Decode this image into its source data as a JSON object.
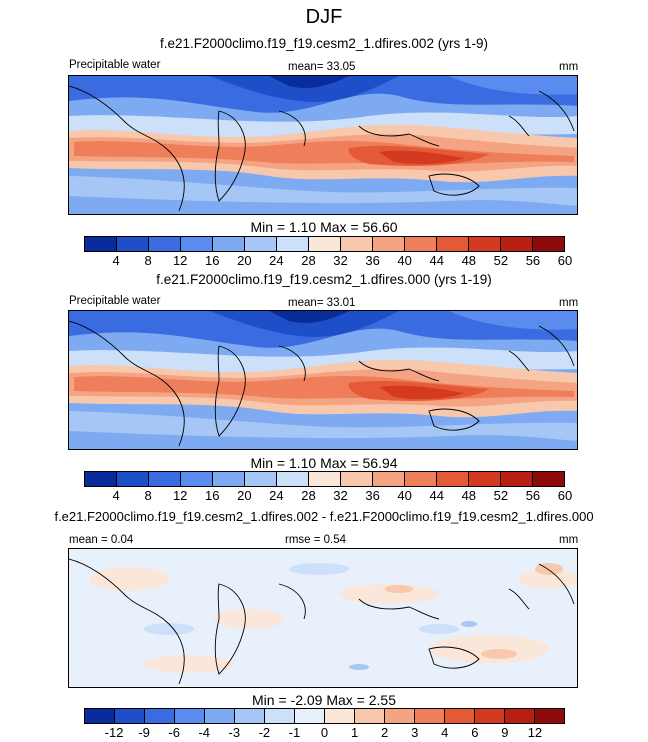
{
  "title": "DJF",
  "panels": [
    {
      "case_title": "f.e21.F2000climo.f19_f19.cesm2_1.dfires.002 (yrs 1-9)",
      "variable": "Precipitable water",
      "stat_text": "mean=  33.05",
      "units": "mm",
      "minmax": "Min =   1.10 Max =   56.60"
    },
    {
      "case_title": "f.e21.F2000climo.f19_f19.cesm2_1.dfires.000 (yrs 1-19)",
      "variable": "Precipitable water",
      "stat_text": "mean=  33.01",
      "units": "mm",
      "minmax": "Min =   1.10 Max =   56.94"
    },
    {
      "case_title": "f.e21.F2000climo.f19_f19.cesm2_1.dfires.002 - f.e21.F2000climo.f19_f19.cesm2_1.dfires.000",
      "mean_text": "mean =   0.04",
      "rmse_text": "rmse =   0.54",
      "units": "mm",
      "minmax": "Min =  -2.09 Max =   2.55"
    }
  ],
  "colorbar_abs": {
    "colors": [
      "#0a2c9a",
      "#1f4fc8",
      "#3a6be0",
      "#5a8cf0",
      "#7eaaf2",
      "#a6c6f5",
      "#cde0fa",
      "#fbe6da",
      "#f8c8ad",
      "#f5a483",
      "#ef7e5a",
      "#e55a36",
      "#d33a1f",
      "#b81f13",
      "#8f0a0a"
    ],
    "labels": [
      "4",
      "8",
      "12",
      "16",
      "20",
      "24",
      "28",
      "32",
      "36",
      "40",
      "44",
      "48",
      "52",
      "56",
      "60"
    ]
  },
  "colorbar_diff": {
    "colors": [
      "#0a2c9a",
      "#1f4fc8",
      "#3a6be0",
      "#5a8cf0",
      "#7eaaf2",
      "#a6c6f5",
      "#cde0fa",
      "#e8f0fc",
      "#fbe6da",
      "#f8c8ad",
      "#f5a483",
      "#ef7e5a",
      "#e55a36",
      "#d33a1f",
      "#b81f13",
      "#8f0a0a"
    ],
    "labels": [
      "-12",
      "-9",
      "-6",
      "-4",
      "-3",
      "-2",
      "-1",
      "0",
      "1",
      "2",
      "3",
      "4",
      "6",
      "9",
      "12"
    ]
  }
}
